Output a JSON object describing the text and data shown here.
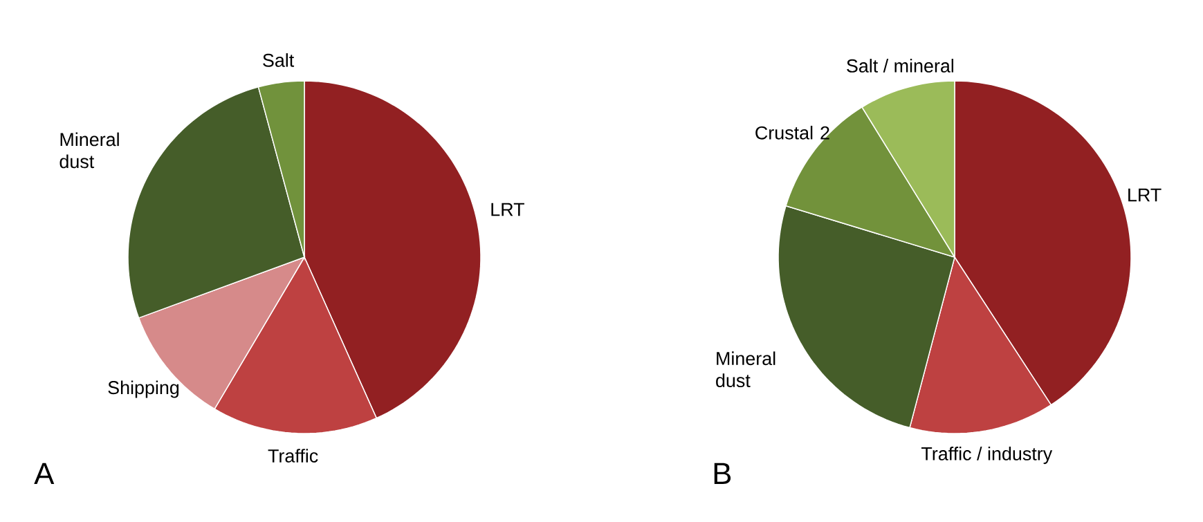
{
  "chart_data": [
    {
      "type": "pie",
      "categories": [
        "LRT",
        "Traffic",
        "Shipping",
        "Mineral dust",
        "Salt"
      ],
      "values": [
        43.3,
        15.2,
        10.9,
        26.4,
        4.2
      ],
      "colors": [
        "#922022",
        "#be4141",
        "#d68a8a",
        "#455d29",
        "#71923c"
      ],
      "annotations": [
        "A"
      ]
    },
    {
      "type": "pie",
      "categories": [
        "LRT",
        "Traffic / industry",
        "Mineral dust",
        "Crustal 2",
        "Salt / mineral"
      ],
      "values": [
        40.8,
        13.3,
        25.6,
        11.5,
        8.8
      ],
      "colors": [
        "#922022",
        "#be4141",
        "#455d29",
        "#72923b",
        "#9bbb59"
      ],
      "annotations": [
        "B"
      ]
    }
  ]
}
